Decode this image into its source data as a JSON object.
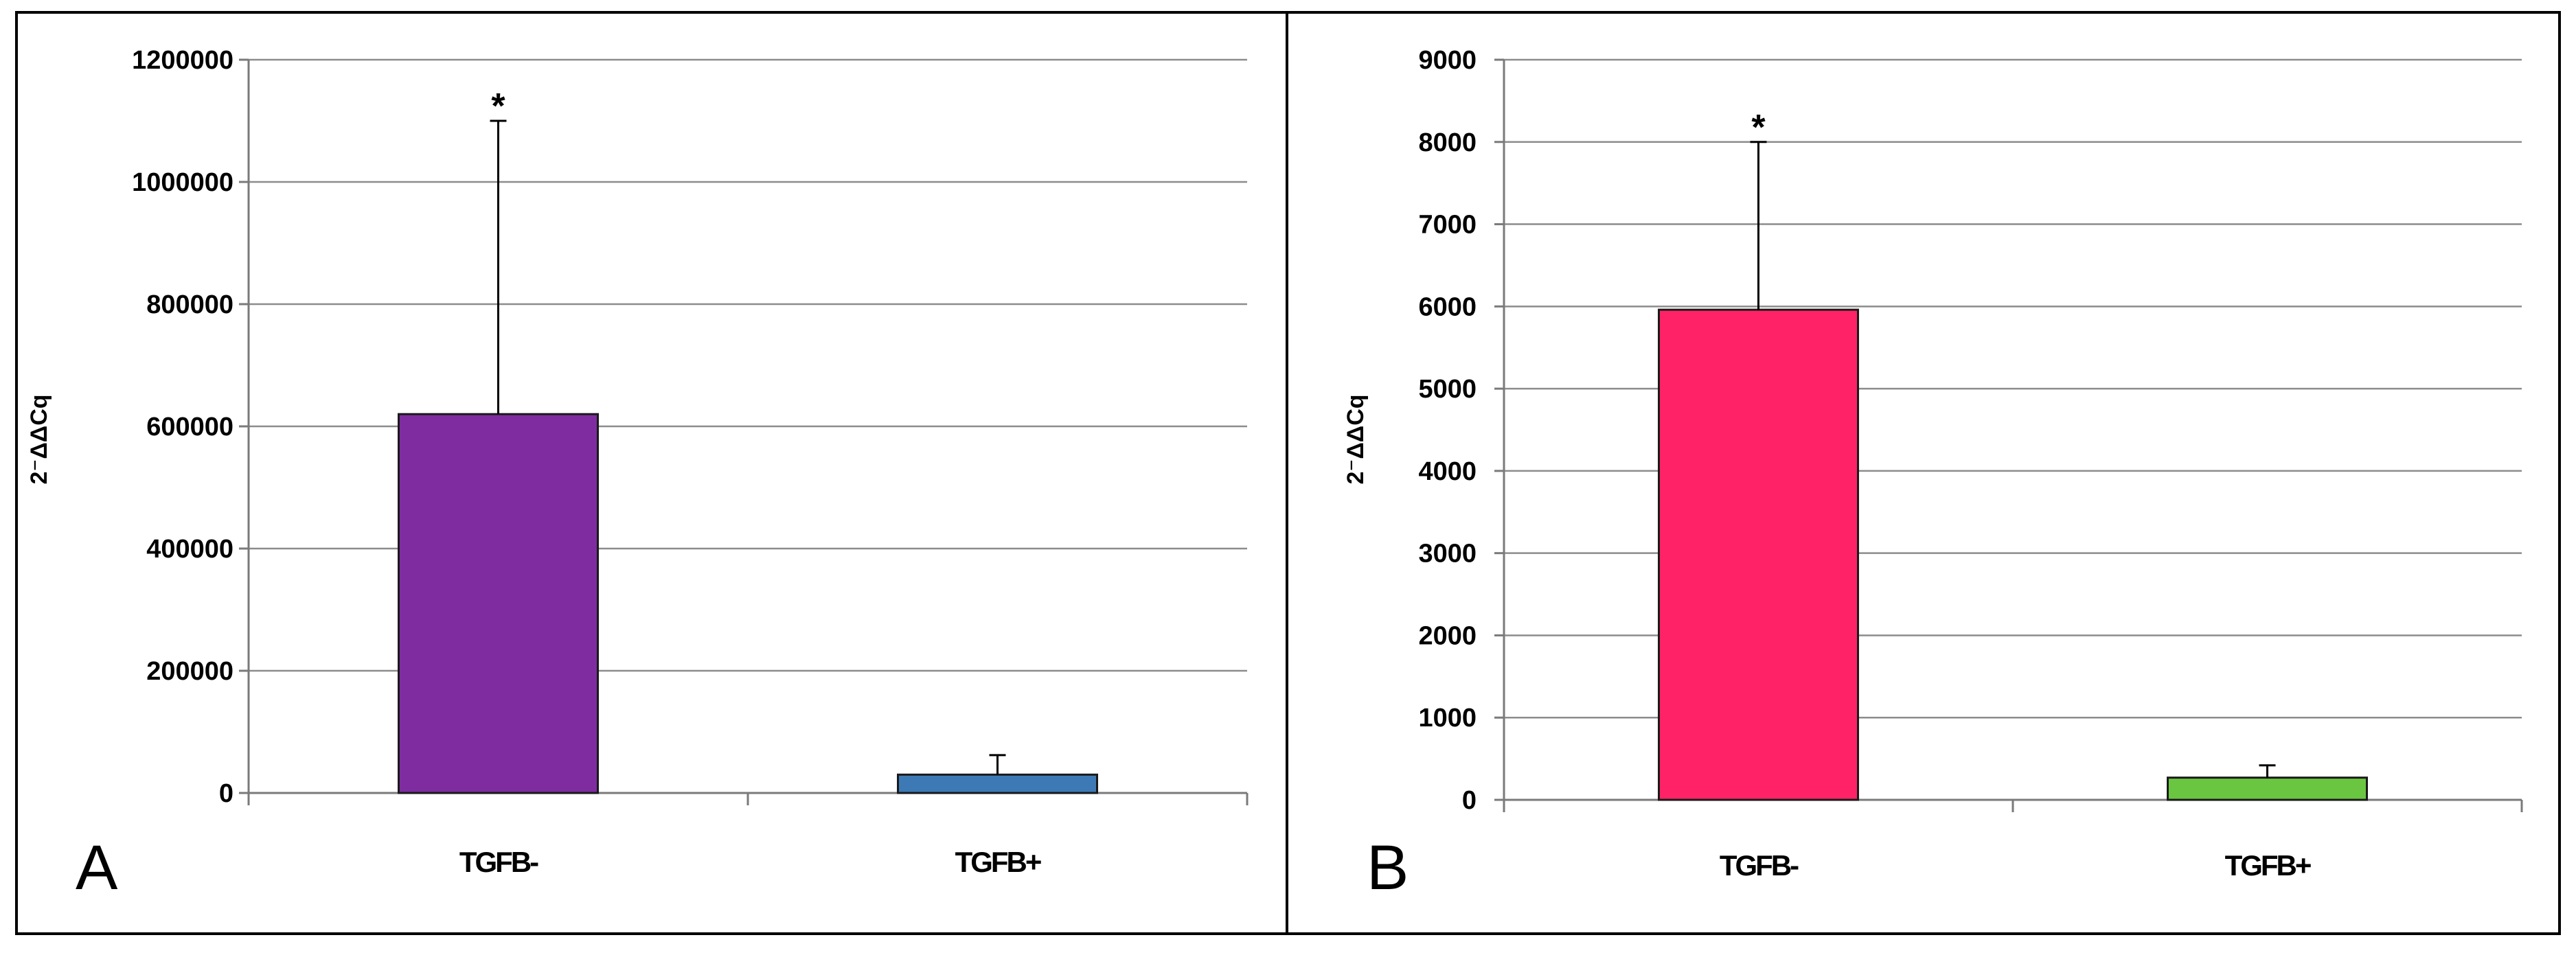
{
  "chart_data": [
    {
      "type": "bar",
      "panel_label": "A",
      "title": "",
      "xlabel": "",
      "ylabel": "2⁻ΔΔCq",
      "categories": [
        "TGFB-",
        "TGFB+"
      ],
      "values": [
        620000,
        30000
      ],
      "errors": [
        480000,
        32000
      ],
      "colors": [
        "#7e2ca0",
        "#3d7ab5"
      ],
      "annotations": [
        "*",
        ""
      ],
      "ylim": [
        0,
        1200000
      ],
      "yticks": [
        "0",
        "200000",
        "400000",
        "600000",
        "800000",
        "1000000",
        "1200000"
      ],
      "grid": true,
      "legend": "none"
    },
    {
      "type": "bar",
      "panel_label": "B",
      "title": "",
      "xlabel": "",
      "ylabel": "2⁻ΔΔCq",
      "categories": [
        "TGFB-",
        "TGFB+"
      ],
      "values": [
        5960,
        270
      ],
      "errors": [
        2040,
        150
      ],
      "colors": [
        "#ff2266",
        "#6ac640"
      ],
      "annotations": [
        "*",
        ""
      ],
      "ylim": [
        0,
        9000
      ],
      "yticks": [
        "0",
        "1000",
        "2000",
        "3000",
        "4000",
        "5000",
        "6000",
        "7000",
        "8000",
        "9000"
      ],
      "grid": true,
      "legend": "none"
    }
  ]
}
